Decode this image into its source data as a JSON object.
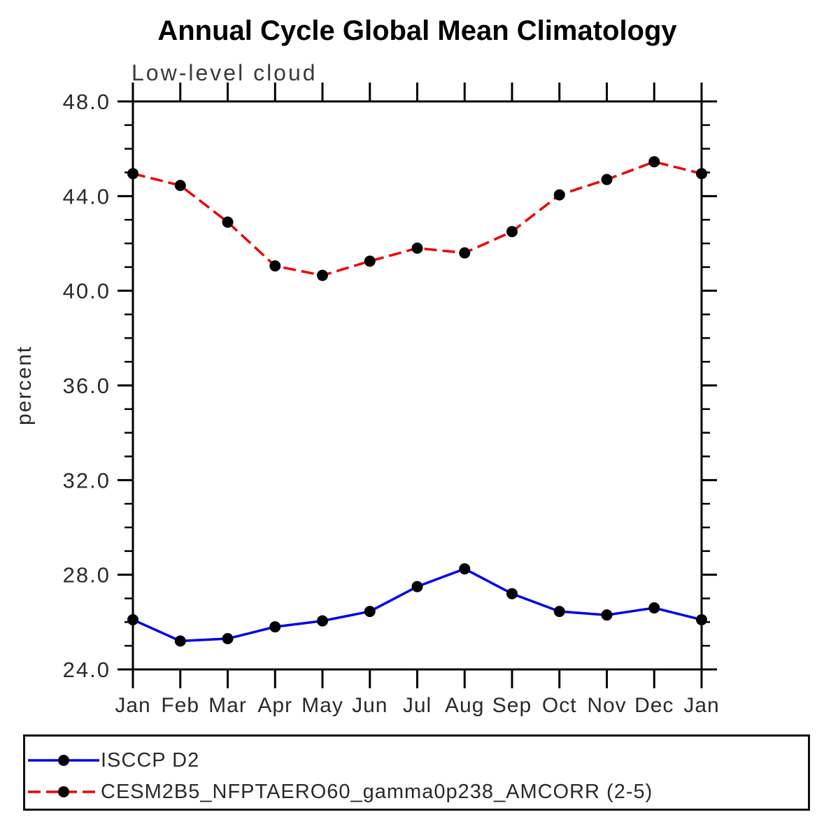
{
  "title": "Annual Cycle Global Mean Climatology",
  "chart_data": {
    "type": "line",
    "title": "Annual Cycle Global Mean Climatology",
    "subtitle": "Low-level cloud",
    "xlabel": "",
    "ylabel": "percent",
    "x_tick_labels": [
      "Jan",
      "Feb",
      "Mar",
      "Apr",
      "May",
      "Jun",
      "Jul",
      "Aug",
      "Sep",
      "Oct",
      "Nov",
      "Dec",
      "Jan"
    ],
    "ylim": [
      24.0,
      48.0
    ],
    "y_major_ticks": [
      24.0,
      28.0,
      32.0,
      36.0,
      40.0,
      44.0,
      48.0
    ],
    "y_tick_labels": [
      "24.0",
      "28.0",
      "32.0",
      "36.0",
      "40.0",
      "44.0",
      "48.0"
    ],
    "y_minor_step": 1.0,
    "grid": "off",
    "legend_position": "bottom-left-boxed",
    "marker": "filled-circle",
    "marker_color": "#000000",
    "axis_color": "#000000",
    "series": [
      {
        "name": "ISCCP D2",
        "color": "#0000ee",
        "style": "solid",
        "values": [
          26.1,
          25.2,
          25.3,
          25.8,
          26.05,
          26.45,
          27.5,
          28.25,
          27.2,
          26.45,
          26.3,
          26.6,
          26.1
        ]
      },
      {
        "name": "CESM2B5_NFPTAERO60_gamma0p238_AMCORR (2-5)",
        "color": "#ee0000",
        "style": "dashed",
        "values": [
          44.95,
          44.45,
          42.9,
          41.05,
          40.65,
          41.25,
          41.8,
          41.6,
          42.5,
          44.05,
          44.7,
          45.45,
          44.95
        ]
      }
    ]
  }
}
